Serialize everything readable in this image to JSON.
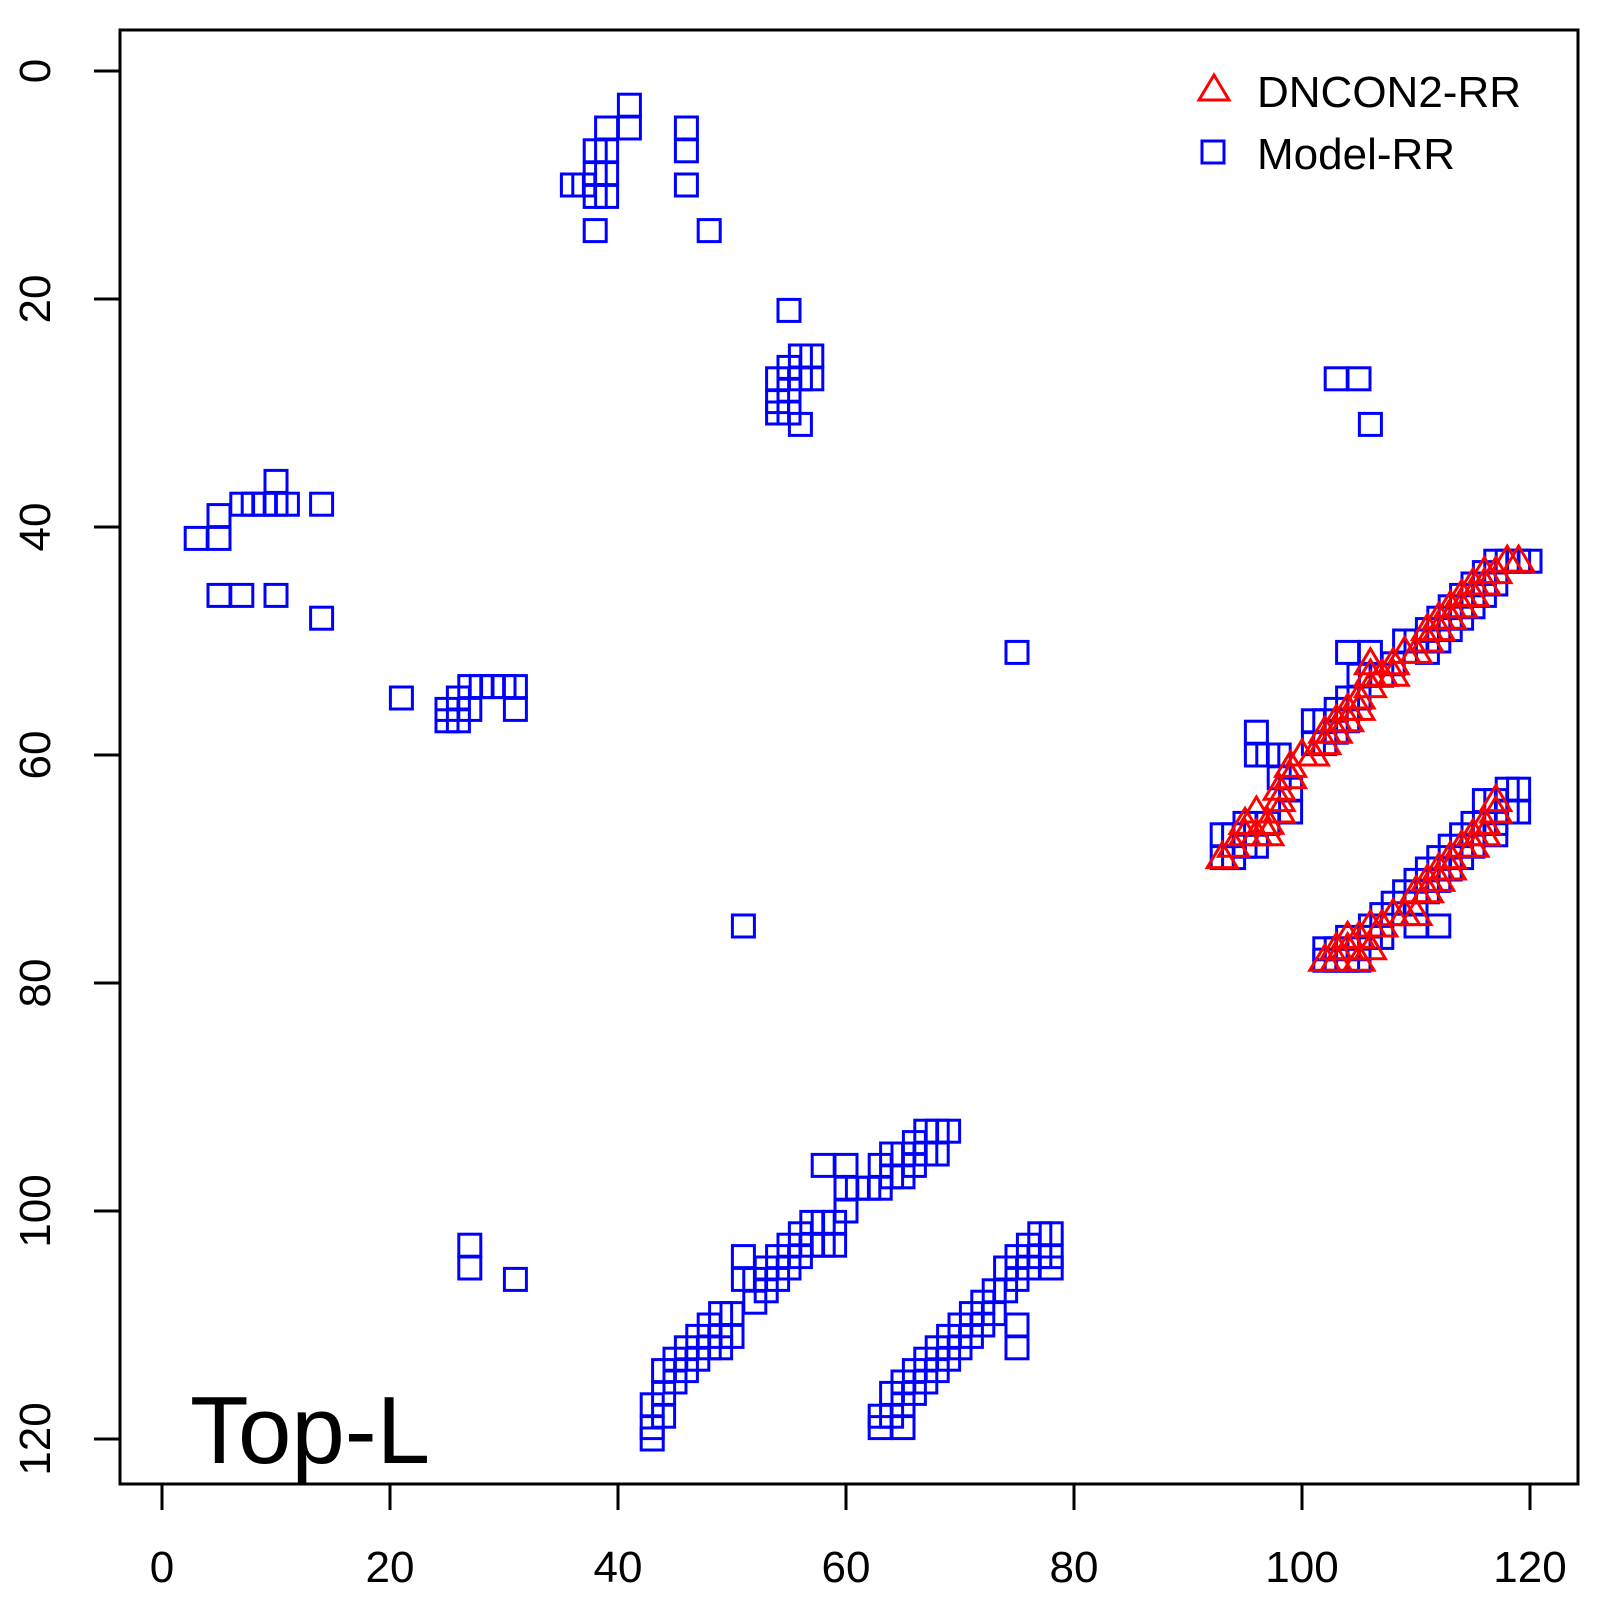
{
  "chart_data": {
    "type": "scatter",
    "title": "",
    "xlabel": "",
    "ylabel": "",
    "xlim": [
      -1,
      124
    ],
    "ylim": [
      124,
      -4
    ],
    "y_inverted": true,
    "x_ticks": [
      "0",
      "20",
      "40",
      "60",
      "80",
      "100",
      "120"
    ],
    "y_ticks": [
      "0",
      "20",
      "40",
      "60",
      "80",
      "100",
      "120"
    ],
    "grid": false,
    "legend_position": "top-right",
    "annotation": "Top-L",
    "series": [
      {
        "name": "DNCON2-RR",
        "marker": "triangle",
        "color": "#ff0000",
        "points": [
          [
            93,
            69
          ],
          [
            94,
            68
          ],
          [
            95,
            67
          ],
          [
            95,
            66
          ],
          [
            96,
            67
          ],
          [
            96,
            65
          ],
          [
            97,
            67
          ],
          [
            97,
            66
          ],
          [
            98,
            65
          ],
          [
            98,
            64
          ],
          [
            98,
            63
          ],
          [
            99,
            62
          ],
          [
            99,
            61
          ],
          [
            100,
            60
          ],
          [
            101,
            60
          ],
          [
            102,
            59
          ],
          [
            102,
            58
          ],
          [
            103,
            57
          ],
          [
            103,
            58
          ],
          [
            104,
            57
          ],
          [
            104,
            56
          ],
          [
            105,
            55
          ],
          [
            105,
            56
          ],
          [
            106,
            54
          ],
          [
            106,
            53
          ],
          [
            106,
            52
          ],
          [
            107,
            53
          ],
          [
            108,
            52
          ],
          [
            108,
            53
          ],
          [
            109,
            51
          ],
          [
            110,
            51
          ],
          [
            111,
            50
          ],
          [
            111,
            49
          ],
          [
            112,
            49
          ],
          [
            112,
            48
          ],
          [
            113,
            48
          ],
          [
            113,
            47
          ],
          [
            114,
            47
          ],
          [
            114,
            46
          ],
          [
            115,
            46
          ],
          [
            115,
            45
          ],
          [
            116,
            45
          ],
          [
            116,
            44
          ],
          [
            117,
            44
          ],
          [
            118,
            43
          ],
          [
            119,
            43
          ],
          [
            102,
            78
          ],
          [
            103,
            78
          ],
          [
            103,
            77
          ],
          [
            104,
            77
          ],
          [
            104,
            76
          ],
          [
            105,
            78
          ],
          [
            105,
            76
          ],
          [
            106,
            77
          ],
          [
            106,
            75
          ],
          [
            107,
            75
          ],
          [
            108,
            74
          ],
          [
            109,
            74
          ],
          [
            110,
            74
          ],
          [
            110,
            72
          ],
          [
            111,
            72
          ],
          [
            111,
            71
          ],
          [
            112,
            70
          ],
          [
            112,
            71
          ],
          [
            113,
            70
          ],
          [
            113,
            69
          ],
          [
            114,
            68
          ],
          [
            115,
            68
          ],
          [
            115,
            67
          ],
          [
            116,
            67
          ],
          [
            116,
            66
          ],
          [
            117,
            65
          ],
          [
            117,
            64
          ]
        ]
      },
      {
        "name": "Model-RR",
        "marker": "square",
        "color": "#0000ff",
        "points": [
          [
            41,
            3
          ],
          [
            41,
            5
          ],
          [
            39,
            5
          ],
          [
            39,
            7
          ],
          [
            38,
            7
          ],
          [
            38,
            9
          ],
          [
            39,
            9
          ],
          [
            38,
            11
          ],
          [
            39,
            11
          ],
          [
            36,
            10
          ],
          [
            37,
            10
          ],
          [
            38,
            14
          ],
          [
            46,
            5
          ],
          [
            46,
            7
          ],
          [
            46,
            10
          ],
          [
            48,
            14
          ],
          [
            55,
            21
          ],
          [
            54,
            27
          ],
          [
            54,
            29
          ],
          [
            54,
            30
          ],
          [
            55,
            26
          ],
          [
            55,
            28
          ],
          [
            55,
            30
          ],
          [
            56,
            25
          ],
          [
            56,
            27
          ],
          [
            56,
            31
          ],
          [
            57,
            25
          ],
          [
            57,
            27
          ],
          [
            103,
            27
          ],
          [
            105,
            27
          ],
          [
            106,
            31
          ],
          [
            3,
            41
          ],
          [
            5,
            39
          ],
          [
            5,
            41
          ],
          [
            7,
            38
          ],
          [
            8,
            38
          ],
          [
            9,
            38
          ],
          [
            10,
            38
          ],
          [
            10,
            36
          ],
          [
            11,
            38
          ],
          [
            14,
            38
          ],
          [
            5,
            46
          ],
          [
            7,
            46
          ],
          [
            10,
            46
          ],
          [
            14,
            48
          ],
          [
            75,
            51
          ],
          [
            21,
            55
          ],
          [
            25,
            56
          ],
          [
            25,
            57
          ],
          [
            26,
            55
          ],
          [
            26,
            57
          ],
          [
            27,
            54
          ],
          [
            27,
            56
          ],
          [
            28,
            54
          ],
          [
            29,
            54
          ],
          [
            30,
            54
          ],
          [
            31,
            54
          ],
          [
            31,
            56
          ],
          [
            51,
            75
          ],
          [
            101,
            57
          ],
          [
            101,
            59
          ],
          [
            102,
            57
          ],
          [
            102,
            59
          ],
          [
            103,
            56
          ],
          [
            103,
            58
          ],
          [
            104,
            51
          ],
          [
            104,
            55
          ],
          [
            104,
            57
          ],
          [
            105,
            53
          ],
          [
            105,
            55
          ],
          [
            106,
            51
          ],
          [
            106,
            53
          ],
          [
            107,
            53
          ],
          [
            108,
            52
          ],
          [
            109,
            50
          ],
          [
            110,
            50
          ],
          [
            111,
            49
          ],
          [
            111,
            51
          ],
          [
            112,
            48
          ],
          [
            112,
            50
          ],
          [
            113,
            47
          ],
          [
            113,
            49
          ],
          [
            114,
            46
          ],
          [
            114,
            48
          ],
          [
            115,
            45
          ],
          [
            115,
            47
          ],
          [
            116,
            44
          ],
          [
            116,
            46
          ],
          [
            117,
            43
          ],
          [
            117,
            45
          ],
          [
            118,
            43
          ],
          [
            119,
            43
          ],
          [
            120,
            43
          ],
          [
            96,
            58
          ],
          [
            96,
            60
          ],
          [
            97,
            60
          ],
          [
            98,
            60
          ],
          [
            98,
            62
          ],
          [
            99,
            63
          ],
          [
            99,
            65
          ],
          [
            97,
            66
          ],
          [
            96,
            68
          ],
          [
            95,
            66
          ],
          [
            95,
            68
          ],
          [
            94,
            67
          ],
          [
            93,
            67
          ],
          [
            93,
            69
          ],
          [
            94,
            69
          ],
          [
            102,
            77
          ],
          [
            102,
            78
          ],
          [
            103,
            77
          ],
          [
            103,
            78
          ],
          [
            104,
            76
          ],
          [
            104,
            78
          ],
          [
            105,
            77
          ],
          [
            105,
            78
          ],
          [
            106,
            76
          ],
          [
            106,
            75
          ],
          [
            107,
            74
          ],
          [
            107,
            76
          ],
          [
            108,
            73
          ],
          [
            109,
            72
          ],
          [
            110,
            71
          ],
          [
            110,
            73
          ],
          [
            110,
            75
          ],
          [
            111,
            70
          ],
          [
            111,
            72
          ],
          [
            112,
            69
          ],
          [
            112,
            71
          ],
          [
            112,
            75
          ],
          [
            113,
            68
          ],
          [
            113,
            70
          ],
          [
            114,
            67
          ],
          [
            114,
            69
          ],
          [
            115,
            66
          ],
          [
            115,
            68
          ],
          [
            116,
            64
          ],
          [
            116,
            66
          ],
          [
            117,
            64
          ],
          [
            117,
            66
          ],
          [
            117,
            67
          ],
          [
            118,
            63
          ],
          [
            118,
            65
          ],
          [
            119,
            63
          ],
          [
            119,
            65
          ],
          [
            58,
            96
          ],
          [
            60,
            96
          ],
          [
            60,
            98
          ],
          [
            60,
            100
          ],
          [
            61,
            98
          ],
          [
            62,
            98
          ],
          [
            63,
            96
          ],
          [
            63,
            98
          ],
          [
            64,
            95
          ],
          [
            64,
            97
          ],
          [
            65,
            95
          ],
          [
            65,
            97
          ],
          [
            66,
            94
          ],
          [
            66,
            96
          ],
          [
            67,
            93
          ],
          [
            67,
            95
          ],
          [
            68,
            93
          ],
          [
            68,
            95
          ],
          [
            69,
            93
          ],
          [
            57,
            101
          ],
          [
            57,
            103
          ],
          [
            58,
            101
          ],
          [
            58,
            103
          ],
          [
            59,
            101
          ],
          [
            59,
            103
          ],
          [
            56,
            102
          ],
          [
            56,
            104
          ],
          [
            55,
            103
          ],
          [
            55,
            105
          ],
          [
            54,
            104
          ],
          [
            54,
            106
          ],
          [
            53,
            105
          ],
          [
            53,
            107
          ],
          [
            52,
            106
          ],
          [
            52,
            108
          ],
          [
            51,
            104
          ],
          [
            51,
            106
          ],
          [
            50,
            109
          ],
          [
            50,
            111
          ],
          [
            49,
            109
          ],
          [
            49,
            111
          ],
          [
            49,
            112
          ],
          [
            48,
            110
          ],
          [
            48,
            112
          ],
          [
            47,
            111
          ],
          [
            47,
            113
          ],
          [
            46,
            112
          ],
          [
            46,
            114
          ],
          [
            45,
            113
          ],
          [
            45,
            115
          ],
          [
            44,
            114
          ],
          [
            44,
            116
          ],
          [
            44,
            118
          ],
          [
            43,
            117
          ],
          [
            43,
            119
          ],
          [
            43,
            120
          ],
          [
            27,
            103
          ],
          [
            27,
            105
          ],
          [
            31,
            106
          ],
          [
            77,
            102
          ],
          [
            77,
            104
          ],
          [
            78,
            102
          ],
          [
            78,
            104
          ],
          [
            78,
            105
          ],
          [
            76,
            103
          ],
          [
            76,
            105
          ],
          [
            75,
            104
          ],
          [
            75,
            106
          ],
          [
            74,
            105
          ],
          [
            74,
            107
          ],
          [
            73,
            107
          ],
          [
            73,
            109
          ],
          [
            72,
            108
          ],
          [
            72,
            110
          ],
          [
            71,
            109
          ],
          [
            71,
            111
          ],
          [
            70,
            110
          ],
          [
            70,
            112
          ],
          [
            69,
            111
          ],
          [
            69,
            113
          ],
          [
            68,
            112
          ],
          [
            68,
            114
          ],
          [
            67,
            113
          ],
          [
            67,
            115
          ],
          [
            66,
            114
          ],
          [
            66,
            116
          ],
          [
            65,
            115
          ],
          [
            65,
            117
          ],
          [
            64,
            116
          ],
          [
            64,
            118
          ],
          [
            63,
            118
          ],
          [
            63,
            119
          ],
          [
            65,
            119
          ],
          [
            75,
            112
          ],
          [
            75,
            110
          ]
        ]
      }
    ]
  }
}
